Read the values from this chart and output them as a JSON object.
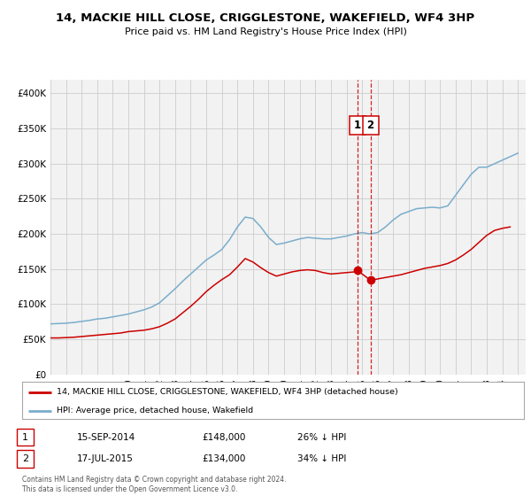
{
  "title": "14, MACKIE HILL CLOSE, CRIGGLESTONE, WAKEFIELD, WF4 3HP",
  "subtitle": "Price paid vs. HM Land Registry's House Price Index (HPI)",
  "legend_label_red": "14, MACKIE HILL CLOSE, CRIGGLESTONE, WAKEFIELD, WF4 3HP (detached house)",
  "legend_label_blue": "HPI: Average price, detached house, Wakefield",
  "footnote1": "Contains HM Land Registry data © Crown copyright and database right 2024.",
  "footnote2": "This data is licensed under the Open Government Licence v3.0.",
  "marker1_label": "1",
  "marker1_date": "15-SEP-2014",
  "marker1_price": "£148,000",
  "marker1_hpi": "26% ↓ HPI",
  "marker2_label": "2",
  "marker2_date": "17-JUL-2015",
  "marker2_price": "£134,000",
  "marker2_hpi": "34% ↓ HPI",
  "vline1_x": 2014.71,
  "vline2_x": 2015.54,
  "point1_x": 2014.71,
  "point1_y": 148000,
  "point2_x": 2015.54,
  "point2_y": 134000,
  "ylim": [
    0,
    420000
  ],
  "xlim": [
    1995,
    2025.5
  ],
  "red_color": "#cc0000",
  "blue_color": "#7aadcc",
  "background_color": "#f2f2f2",
  "grid_color": "#cccccc",
  "hpi_x": [
    1995,
    1995.5,
    1996,
    1996.5,
    1997,
    1997.5,
    1998,
    1998.5,
    1999,
    1999.5,
    2000,
    2000.5,
    2001,
    2001.5,
    2002,
    2002.5,
    2003,
    2003.5,
    2004,
    2004.5,
    2005,
    2005.5,
    2006,
    2006.5,
    2007,
    2007.5,
    2008,
    2008.5,
    2009,
    2009.5,
    2010,
    2010.5,
    2011,
    2011.5,
    2012,
    2012.5,
    2013,
    2013.5,
    2014,
    2014.5,
    2015,
    2015.5,
    2016,
    2016.5,
    2017,
    2017.5,
    2018,
    2018.5,
    2019,
    2019.5,
    2020,
    2020.5,
    2021,
    2021.5,
    2022,
    2022.5,
    2023,
    2023.5,
    2024,
    2024.5,
    2025
  ],
  "hpi_y": [
    72000,
    72500,
    73000,
    74000,
    75500,
    77000,
    79000,
    80000,
    82000,
    84000,
    86000,
    89000,
    92000,
    96000,
    102000,
    112000,
    122000,
    133000,
    143000,
    153000,
    163000,
    170000,
    178000,
    192000,
    210000,
    224000,
    222000,
    210000,
    195000,
    185000,
    187000,
    190000,
    193000,
    195000,
    194000,
    193000,
    193000,
    195000,
    197000,
    200000,
    202000,
    200000,
    202000,
    210000,
    220000,
    228000,
    232000,
    236000,
    237000,
    238000,
    237000,
    240000,
    255000,
    270000,
    285000,
    295000,
    295000,
    300000,
    305000,
    310000,
    315000
  ],
  "price_x": [
    1995,
    1995.5,
    1996,
    1996.5,
    1997,
    1997.5,
    1998,
    1998.5,
    1999,
    1999.5,
    2000,
    2000.5,
    2001,
    2001.5,
    2002,
    2002.5,
    2003,
    2003.5,
    2004,
    2004.5,
    2005,
    2005.5,
    2006,
    2006.5,
    2007,
    2007.5,
    2008,
    2008.5,
    2009,
    2009.5,
    2010,
    2010.5,
    2011,
    2011.5,
    2012,
    2012.5,
    2013,
    2013.5,
    2014,
    2014.5,
    2014.71,
    2015.54,
    2016,
    2016.5,
    2017,
    2017.5,
    2018,
    2018.5,
    2019,
    2019.5,
    2020,
    2020.5,
    2021,
    2021.5,
    2022,
    2022.5,
    2023,
    2023.5,
    2024,
    2024.5
  ],
  "price_y": [
    52000,
    52000,
    52500,
    53000,
    54000,
    55000,
    56000,
    57000,
    58000,
    59000,
    61000,
    62000,
    63000,
    65000,
    68000,
    73000,
    79000,
    88000,
    97000,
    107000,
    118000,
    127000,
    135000,
    142000,
    153000,
    165000,
    160000,
    152000,
    145000,
    140000,
    143000,
    146000,
    148000,
    149000,
    148000,
    145000,
    143000,
    144000,
    145000,
    146000,
    148000,
    134000,
    136000,
    138000,
    140000,
    142000,
    145000,
    148000,
    151000,
    153000,
    155000,
    158000,
    163000,
    170000,
    178000,
    188000,
    198000,
    205000,
    208000,
    210000
  ]
}
